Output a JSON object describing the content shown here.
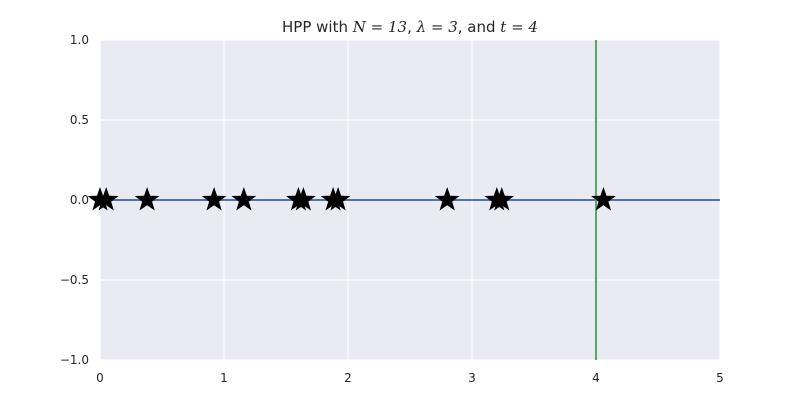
{
  "chart_data": {
    "type": "scatter",
    "title_parts": [
      {
        "text": "HPP with ",
        "math": false
      },
      {
        "text": "N = 13",
        "math": true
      },
      {
        "text": ", ",
        "math": false
      },
      {
        "text": "λ = 3",
        "math": true
      },
      {
        "text": ", and ",
        "math": false
      },
      {
        "text": "t = 4",
        "math": true
      }
    ],
    "xlim": [
      0,
      5
    ],
    "ylim": [
      -1.0,
      1.0
    ],
    "xticks": [
      0,
      1,
      2,
      3,
      4,
      5
    ],
    "xtick_labels": [
      "0",
      "1",
      "2",
      "3",
      "4",
      "5"
    ],
    "yticks": [
      1.0,
      0.5,
      0.0,
      -0.5,
      -1.0
    ],
    "ytick_labels": [
      "1.0",
      "0.5",
      "0.0",
      "−0.5",
      "−1.0"
    ],
    "grid": true,
    "background_color": "#eaeaf2",
    "grid_color": "#ffffff",
    "axis_line": {
      "y": 0,
      "color": "#4c72b0"
    },
    "vertical_line": {
      "x": 4,
      "color": "#55a868"
    },
    "events": {
      "marker": "star",
      "color": "#000000",
      "x": [
        0.0,
        0.05,
        0.38,
        0.92,
        1.16,
        1.6,
        1.64,
        1.88,
        1.92,
        2.8,
        3.2,
        3.24,
        4.06
      ],
      "y": [
        0,
        0,
        0,
        0,
        0,
        0,
        0,
        0,
        0,
        0,
        0,
        0,
        0
      ]
    }
  }
}
